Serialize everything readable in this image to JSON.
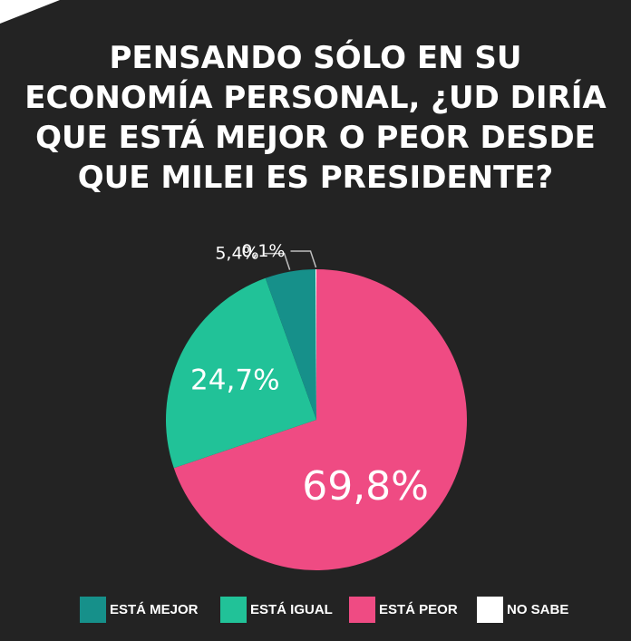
{
  "title": "PENSANDO SÓLO EN SU ECONOMÍA PERSONAL, ¿UD DIRÍA QUE ESTÁ MEJOR O PEOR DESDE QUE MILEI ES PRESIDENTE?",
  "colors": {
    "background": "#232323",
    "mejor": "#16908a",
    "igual": "#21c298",
    "peor": "#ef4b83",
    "no_sabe": "#ffffff",
    "text": "#ffffff"
  },
  "chart_data": {
    "type": "pie",
    "title": "PENSANDO SÓLO EN SU ECONOMÍA PERSONAL, ¿UD DIRÍA QUE ESTÁ MEJOR O PEOR DESDE QUE MILEI ES PRESIDENTE?",
    "start": "12 o'clock, clockwise",
    "legend_position": "bottom",
    "slices": [
      {
        "key": "peor",
        "label": "ESTÁ PEOR",
        "value": 69.8,
        "display": "69,8%",
        "color": "#ef4b83"
      },
      {
        "key": "igual",
        "label": "ESTÁ IGUAL",
        "value": 24.7,
        "display": "24,7%",
        "color": "#21c298"
      },
      {
        "key": "mejor",
        "label": "ESTÁ MEJOR",
        "value": 5.4,
        "display": "5,4%",
        "color": "#16908a"
      },
      {
        "key": "no_sabe",
        "label": "NO SABE",
        "value": 0.1,
        "display": "0,1%",
        "color": "#ffffff"
      }
    ]
  },
  "legend": [
    {
      "key": "mejor",
      "label": "ESTÁ MEJOR",
      "color": "#16908a"
    },
    {
      "key": "igual",
      "label": "ESTÁ IGUAL",
      "color": "#21c298"
    },
    {
      "key": "peor",
      "label": "ESTÁ PEOR",
      "color": "#ef4b83"
    },
    {
      "key": "no_sabe",
      "label": "NO SABE",
      "color": "#ffffff"
    }
  ]
}
